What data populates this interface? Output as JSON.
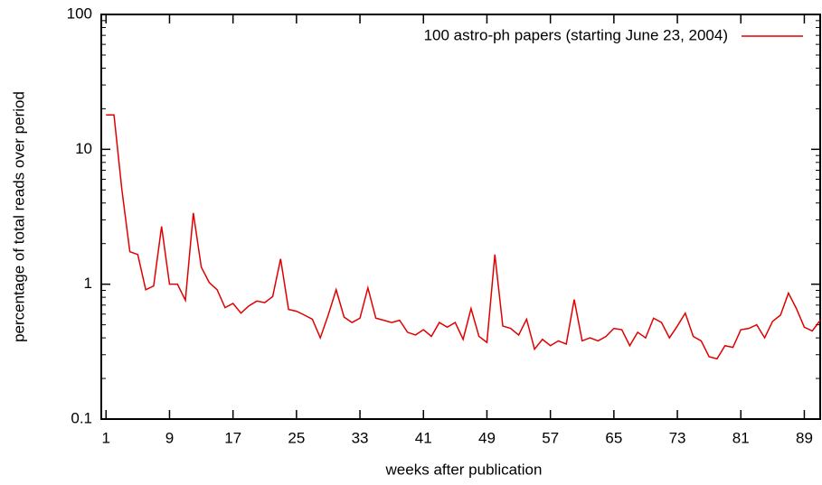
{
  "chart_data": {
    "type": "line",
    "xlabel": "weeks after publication",
    "ylabel": "percentage of total reads over period",
    "x": [
      1,
      2,
      3,
      4,
      5,
      6,
      7,
      8,
      9,
      10,
      11,
      12,
      13,
      14,
      15,
      16,
      17,
      18,
      19,
      20,
      21,
      22,
      23,
      24,
      25,
      26,
      27,
      28,
      29,
      30,
      31,
      32,
      33,
      34,
      35,
      36,
      37,
      38,
      39,
      40,
      41,
      42,
      43,
      44,
      45,
      46,
      47,
      48,
      49,
      50,
      51,
      52,
      53,
      54,
      55,
      56,
      57,
      58,
      59,
      60,
      61,
      62,
      63,
      64,
      65,
      66,
      67,
      68,
      69,
      70,
      71,
      72,
      73,
      74,
      75,
      76,
      77,
      78,
      79,
      80,
      81,
      82,
      83,
      84,
      85,
      86,
      87,
      88,
      89,
      90,
      91
    ],
    "series": [
      {
        "name": "100 astro-ph papers (starting June 23, 2004)",
        "color": "#e00000",
        "values": [
          18,
          18,
          5.0,
          1.74,
          1.66,
          0.91,
          0.97,
          2.68,
          1.0,
          1.0,
          0.76,
          3.37,
          1.34,
          1.03,
          0.91,
          0.67,
          0.72,
          0.61,
          0.69,
          0.75,
          0.73,
          0.81,
          1.54,
          0.65,
          0.63,
          0.59,
          0.55,
          0.4,
          0.59,
          0.91,
          0.57,
          0.52,
          0.56,
          0.94,
          0.56,
          0.54,
          0.52,
          0.54,
          0.44,
          0.42,
          0.46,
          0.41,
          0.52,
          0.48,
          0.52,
          0.39,
          0.66,
          0.41,
          0.37,
          1.66,
          0.49,
          0.47,
          0.42,
          0.55,
          0.33,
          0.39,
          0.35,
          0.38,
          0.36,
          0.77,
          0.38,
          0.4,
          0.38,
          0.41,
          0.47,
          0.46,
          0.35,
          0.44,
          0.4,
          0.56,
          0.52,
          0.4,
          0.49,
          0.61,
          0.41,
          0.38,
          0.29,
          0.28,
          0.35,
          0.34,
          0.46,
          0.47,
          0.5,
          0.4,
          0.53,
          0.59,
          0.86,
          0.66,
          0.48,
          0.45,
          0.54
        ]
      }
    ],
    "xlim": [
      0.4,
      91
    ],
    "xticks": [
      1,
      9,
      17,
      25,
      33,
      41,
      49,
      57,
      65,
      73,
      81,
      89
    ],
    "ylim": [
      0.1,
      100
    ],
    "yticks": [
      0.1,
      1,
      10,
      100
    ],
    "ylog": true,
    "grid": false,
    "legend": "top-right"
  }
}
